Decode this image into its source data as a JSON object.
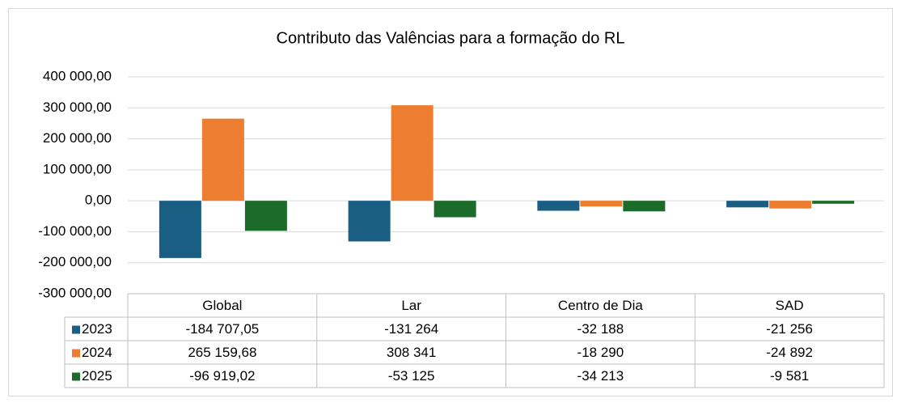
{
  "chart_data": {
    "type": "bar",
    "title": "Contributo das Valências para a formação do RL",
    "categories": [
      "Global",
      "Lar",
      "Centro de Dia",
      "SAD"
    ],
    "series": [
      {
        "name": "2023",
        "color": "#1b5e84",
        "values": [
          -184707.05,
          -131264,
          -32188,
          -21256
        ],
        "value_labels": [
          "-184 707,05",
          "-131 264",
          "-32 188",
          "-21 256"
        ]
      },
      {
        "name": "2024",
        "color": "#ed7d31",
        "values": [
          265159.68,
          308341,
          -18290,
          -24892
        ],
        "value_labels": [
          "265 159,68",
          "308 341",
          "-18 290",
          "-24 892"
        ]
      },
      {
        "name": "2025",
        "color": "#1d6b2a",
        "values": [
          -96919.02,
          -53125,
          -34213,
          -9581
        ],
        "value_labels": [
          "-96 919,02",
          "-53 125",
          "-34 213",
          "-9 581"
        ]
      }
    ],
    "ylim": [
      -300000,
      400000
    ],
    "yticks": [
      {
        "value": -300000,
        "label": "-300 000,00"
      },
      {
        "value": -200000,
        "label": "-200 000,00"
      },
      {
        "value": -100000,
        "label": "-100 000,00"
      },
      {
        "value": 0,
        "label": "0,00"
      },
      {
        "value": 100000,
        "label": "100 000,00"
      },
      {
        "value": 200000,
        "label": "200 000,00"
      },
      {
        "value": 300000,
        "label": "300 000,00"
      },
      {
        "value": 400000,
        "label": "400 000,00"
      }
    ],
    "grid": true
  }
}
